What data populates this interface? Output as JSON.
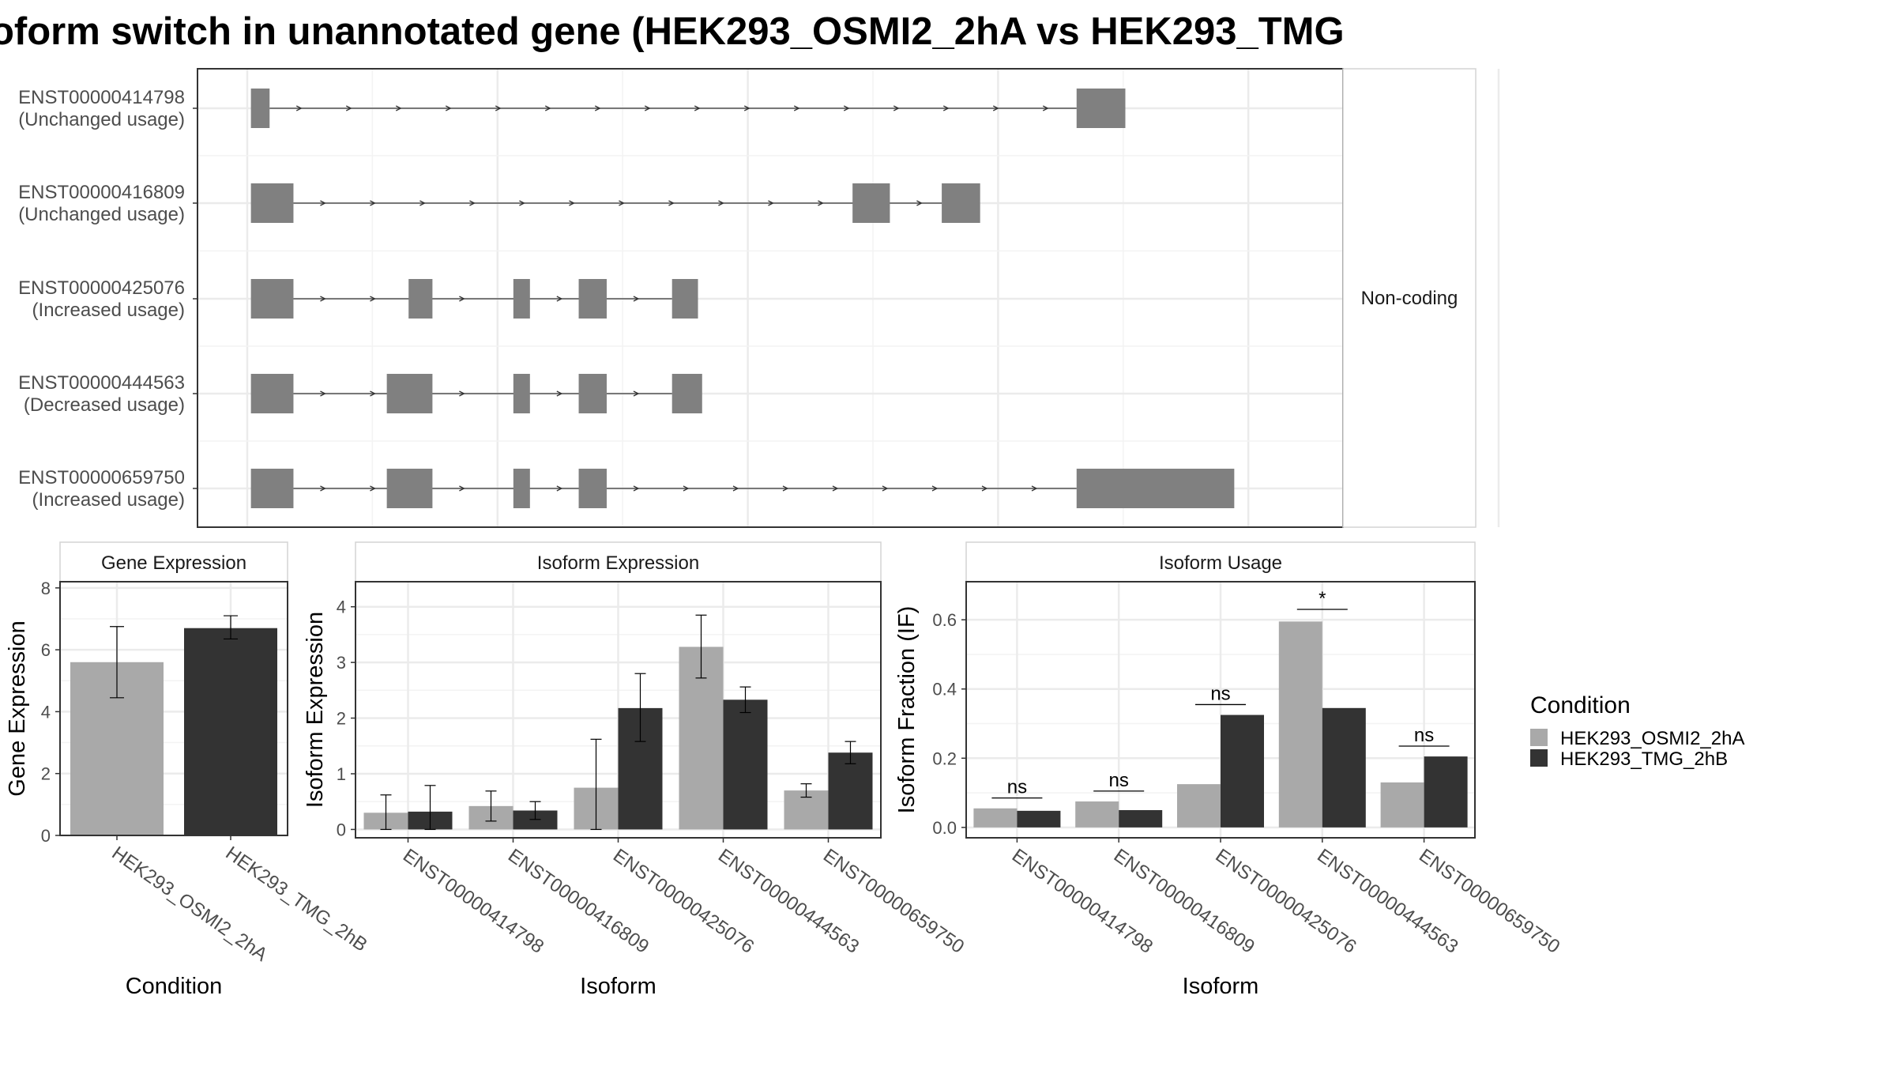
{
  "title": "oform switch in unannotated gene (HEK293_OSMI2_2hA vs HEK293_TMG",
  "colors": {
    "cond_a": "#a9a9a9",
    "cond_b": "#333333",
    "exon": "#808080",
    "grid": "#ebebeb",
    "panel_border": "#333333"
  },
  "chart_data": [
    {
      "type": "gene_structure",
      "facet_label": "Non-coding",
      "x_domain": [
        0,
        1
      ],
      "isoforms": [
        {
          "id": "ENST00000414798",
          "usage": "(Unchanged usage)",
          "exons": [
            {
              "start": 0.002,
              "end": 0.02,
              "h": 1
            },
            {
              "start": 0.798,
              "end": 0.845,
              "h": 1
            }
          ]
        },
        {
          "id": "ENST00000416809",
          "usage": "(Unchanged usage)",
          "exons": [
            {
              "start": 0.002,
              "end": 0.043,
              "h": 1
            },
            {
              "start": 0.582,
              "end": 0.618,
              "h": 1
            },
            {
              "start": 0.668,
              "end": 0.705,
              "h": 1
            }
          ]
        },
        {
          "id": "ENST00000425076",
          "usage": "(Increased usage)",
          "exons": [
            {
              "start": 0.002,
              "end": 0.043,
              "h": 1
            },
            {
              "start": 0.154,
              "end": 0.177,
              "h": 1
            },
            {
              "start": 0.255,
              "end": 0.271,
              "h": 1
            },
            {
              "start": 0.318,
              "end": 0.345,
              "h": 1
            },
            {
              "start": 0.408,
              "end": 0.433,
              "h": 1
            }
          ]
        },
        {
          "id": "ENST00000444563",
          "usage": "(Decreased usage)",
          "exons": [
            {
              "start": 0.002,
              "end": 0.043,
              "h": 1
            },
            {
              "start": 0.133,
              "end": 0.177,
              "h": 1
            },
            {
              "start": 0.255,
              "end": 0.271,
              "h": 1
            },
            {
              "start": 0.318,
              "end": 0.345,
              "h": 1
            },
            {
              "start": 0.408,
              "end": 0.437,
              "h": 1
            }
          ]
        },
        {
          "id": "ENST00000659750",
          "usage": "(Increased usage)",
          "exons": [
            {
              "start": 0.002,
              "end": 0.043,
              "h": 1
            },
            {
              "start": 0.133,
              "end": 0.177,
              "h": 1
            },
            {
              "start": 0.255,
              "end": 0.271,
              "h": 1
            },
            {
              "start": 0.318,
              "end": 0.345,
              "h": 1
            },
            {
              "start": 0.798,
              "end": 0.95,
              "h": 2
            }
          ]
        }
      ]
    },
    {
      "type": "bar",
      "strip": "Gene Expression",
      "xlabel": "Condition",
      "ylabel": "Gene Expression",
      "ylim": [
        0,
        8.2
      ],
      "yticks": [
        0,
        2,
        4,
        6,
        8
      ],
      "categories": [
        "HEK293_OSMI2_2hA",
        "HEK293_TMG_2hB"
      ],
      "values": [
        5.6,
        6.7
      ],
      "err_low": [
        4.45,
        6.35
      ],
      "err_high": [
        6.75,
        7.1
      ],
      "bar_colors": [
        "#a9a9a9",
        "#333333"
      ]
    },
    {
      "type": "bar",
      "strip": "Isoform Expression",
      "xlabel": "Isoform",
      "ylabel": "Isoform Expression",
      "ylim": [
        -0.15,
        4.45
      ],
      "yticks": [
        0,
        1,
        2,
        3,
        4
      ],
      "categories": [
        "ENST00000414798",
        "ENST00000416809",
        "ENST00000425076",
        "ENST00000444563",
        "ENST00000659750"
      ],
      "series": [
        {
          "name": "HEK293_OSMI2_2hA",
          "values": [
            0.3,
            0.42,
            0.75,
            3.28,
            0.7
          ],
          "err_low": [
            0.0,
            0.15,
            0.0,
            2.72,
            0.58
          ],
          "err_high": [
            0.62,
            0.69,
            1.62,
            3.85,
            0.82
          ]
        },
        {
          "name": "HEK293_TMG_2hB",
          "values": [
            0.32,
            0.34,
            2.18,
            2.33,
            1.38
          ],
          "err_low": [
            0.0,
            0.18,
            1.58,
            2.1,
            1.18
          ],
          "err_high": [
            0.79,
            0.5,
            2.8,
            2.56,
            1.58
          ]
        }
      ]
    },
    {
      "type": "bar",
      "strip": "Isoform Usage",
      "xlabel": "Isoform",
      "ylabel": "Isoform Fraction (IF)",
      "ylim": [
        -0.03,
        0.71
      ],
      "yticks": [
        0.0,
        0.2,
        0.4,
        0.6
      ],
      "ytick_labels": [
        "0.0",
        "0.2",
        "0.4",
        "0.6"
      ],
      "categories": [
        "ENST00000414798",
        "ENST00000416809",
        "ENST00000425076",
        "ENST00000444563",
        "ENST00000659750"
      ],
      "series": [
        {
          "name": "HEK293_OSMI2_2hA",
          "values": [
            0.055,
            0.075,
            0.125,
            0.595,
            0.13
          ]
        },
        {
          "name": "HEK293_TMG_2hB",
          "values": [
            0.048,
            0.05,
            0.325,
            0.345,
            0.205
          ]
        }
      ],
      "significance": [
        {
          "label": "ns",
          "y": 0.085
        },
        {
          "label": "ns",
          "y": 0.105
        },
        {
          "label": "ns",
          "y": 0.355
        },
        {
          "label": "*",
          "y": 0.63
        },
        {
          "label": "ns",
          "y": 0.235
        }
      ]
    }
  ],
  "legend": {
    "title": "Condition",
    "items": [
      {
        "label": "HEK293_OSMI2_2hA",
        "color": "#a9a9a9"
      },
      {
        "label": "HEK293_TMG_2hB",
        "color": "#333333"
      }
    ]
  }
}
